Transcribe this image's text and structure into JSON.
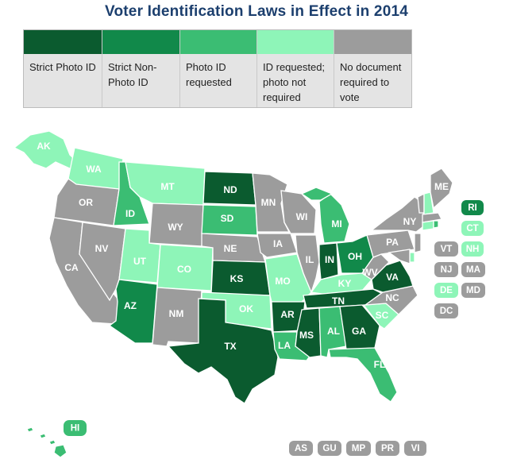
{
  "title": "Voter Identification Laws in Effect in 2014",
  "legend": [
    {
      "label": "Strict Photo ID",
      "color": "#0b5b2f"
    },
    {
      "label": "Strict Non-Photo ID",
      "color": "#11894a"
    },
    {
      "label": "Photo ID requested",
      "color": "#3bbd73"
    },
    {
      "label": "ID requested; photo not required",
      "color": "#8ef5b8"
    },
    {
      "label": "No document required to vote",
      "color": "#9c9c9c"
    }
  ],
  "colors": {
    "strict_photo": "#0b5b2f",
    "strict_nonphoto": "#11894a",
    "photo_requested": "#3bbd73",
    "id_requested": "#8ef5b8",
    "none": "#9c9c9c"
  },
  "states": {
    "WA": "WA",
    "OR": "OR",
    "CA": "CA",
    "ID": "ID",
    "NV": "NV",
    "MT": "MT",
    "WY": "WY",
    "UT": "UT",
    "CO": "CO",
    "AZ": "AZ",
    "NM": "NM",
    "ND": "ND",
    "SD": "SD",
    "NE": "NE",
    "KS": "KS",
    "OK": "OK",
    "TX": "TX",
    "MN": "MN",
    "IA": "IA",
    "MO": "MO",
    "AR": "AR",
    "LA": "LA",
    "WI": "WI",
    "IL": "IL",
    "MI": "MI",
    "IN": "IN",
    "OH": "OH",
    "KY": "KY",
    "TN": "TN",
    "MS": "MS",
    "AL": "AL",
    "GA": "GA",
    "FL": "FL",
    "SC": "SC",
    "NC": "NC",
    "VA": "VA",
    "WV": "WV",
    "PA": "PA",
    "NY": "NY",
    "ME": "ME",
    "AK": "AK",
    "HI": "HI"
  },
  "small_states": {
    "RI": "RI",
    "CT": "CT",
    "VT": "VT",
    "NH": "NH",
    "NJ": "NJ",
    "MA": "MA",
    "DE": "DE",
    "MD": "MD",
    "DC": "DC"
  },
  "territories": [
    "AS",
    "GU",
    "MP",
    "PR",
    "VI"
  ]
}
